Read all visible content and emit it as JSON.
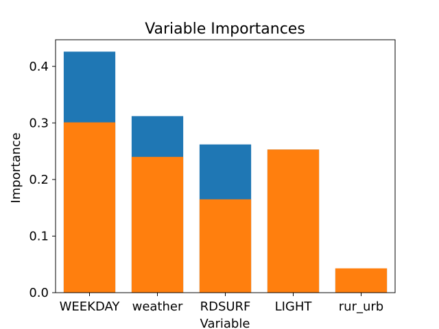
{
  "chart_data": {
    "type": "bar",
    "title": "Variable Importances",
    "xlabel": "Variable",
    "ylabel": "Importance",
    "categories": [
      "WEEKDAY",
      "weather",
      "RDSURF",
      "LIGHT",
      "rur_urb"
    ],
    "series": [
      {
        "color": "#1f77b4",
        "values": [
          0.426,
          0.312,
          0.262,
          0.253,
          0.043
        ]
      },
      {
        "color": "#ff7f0e",
        "values": [
          0.301,
          0.24,
          0.165,
          0.253,
          0.043
        ]
      }
    ],
    "overlay": true,
    "ylim": [
      0,
      0.447
    ],
    "yticks": [
      0.0,
      0.1,
      0.2,
      0.3,
      0.4
    ],
    "ytick_labels": [
      "0.0",
      "0.1",
      "0.2",
      "0.3",
      "0.4"
    ],
    "grid": false,
    "legend": "none"
  }
}
